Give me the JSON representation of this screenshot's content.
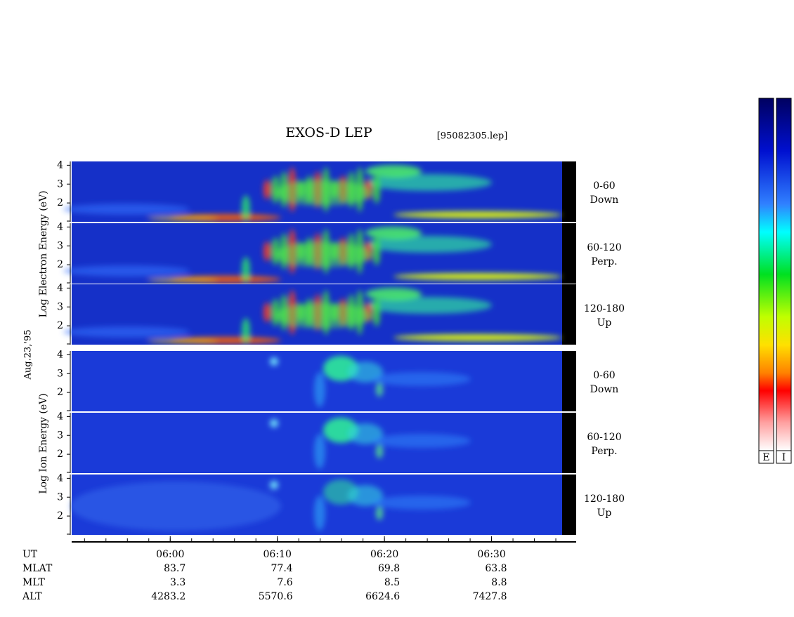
{
  "title": "EXOS-D LEP",
  "file": "[95082305.lep]",
  "date": "Aug.23,'95",
  "energy_axis": {
    "ylim": [
      1,
      4.2
    ],
    "yticks": [
      2,
      3,
      4
    ]
  },
  "time_axis": {
    "xlim": [
      350.8,
      397.9
    ],
    "xticks": [
      {
        "value": 360,
        "label": "06:00"
      },
      {
        "value": 370,
        "label": "06:10"
      },
      {
        "value": 380,
        "label": "06:20"
      },
      {
        "value": 390,
        "label": "06:30"
      }
    ]
  },
  "electron_panel": {
    "ylabel": "Log  Electron  Energy (eV)",
    "channels": [
      {
        "angle": "0-60",
        "direction": "Down"
      },
      {
        "angle": "60-120",
        "direction": "Perp."
      },
      {
        "angle": "120-180",
        "direction": "Up"
      }
    ]
  },
  "ion_panel": {
    "ylabel": "Log  Ion  Energy (eV)",
    "channels": [
      {
        "angle": "0-60",
        "direction": "Down"
      },
      {
        "angle": "60-120",
        "direction": "Perp."
      },
      {
        "angle": "120-180",
        "direction": "Up"
      }
    ]
  },
  "orbit": {
    "ut_label": "UT",
    "rows": [
      {
        "label": "MLAT",
        "values": [
          83.7,
          77.4,
          69.8,
          63.8
        ]
      },
      {
        "label": "MLT",
        "values": [
          3.3,
          7.6,
          8.5,
          8.8
        ]
      },
      {
        "label": "ALT",
        "values": [
          4283.2,
          5570.6,
          6624.6,
          7427.8
        ]
      }
    ]
  },
  "colorbars": [
    "E",
    "I"
  ]
}
